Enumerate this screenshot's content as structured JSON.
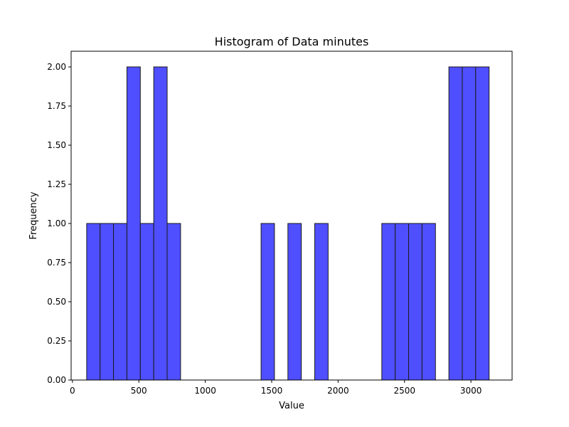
{
  "colors": {
    "bar_fill": "#4f4fff",
    "bar_stroke": "#1a1a1a",
    "axis": "#000000",
    "background": "#ffffff"
  },
  "chart_data": {
    "type": "bar",
    "title": "Histogram of Data minutes",
    "xlabel": "Value",
    "ylabel": "Frequency",
    "xlim": [
      -10,
      3310
    ],
    "ylim": [
      0,
      2.1
    ],
    "grid": false,
    "bin_width": 101,
    "x_ticks": [
      0,
      500,
      1000,
      1500,
      2000,
      2500,
      3000
    ],
    "x_tick_labels": [
      "0",
      "500",
      "1000",
      "1500",
      "2000",
      "2500",
      "3000"
    ],
    "y_ticks": [
      0,
      0.25,
      0.5,
      0.75,
      1.0,
      1.25,
      1.5,
      1.75,
      2.0
    ],
    "y_tick_labels": [
      "0.00",
      "0.25",
      "0.50",
      "0.75",
      "1.00",
      "1.25",
      "1.50",
      "1.75",
      "2.00"
    ],
    "bins": [
      {
        "x0": 107,
        "x1": 208,
        "count": 1
      },
      {
        "x0": 208,
        "x1": 309,
        "count": 1
      },
      {
        "x0": 309,
        "x1": 410,
        "count": 1
      },
      {
        "x0": 410,
        "x1": 511,
        "count": 2
      },
      {
        "x0": 511,
        "x1": 612,
        "count": 1
      },
      {
        "x0": 612,
        "x1": 713,
        "count": 2
      },
      {
        "x0": 713,
        "x1": 814,
        "count": 1
      },
      {
        "x0": 1420,
        "x1": 1521,
        "count": 1
      },
      {
        "x0": 1622,
        "x1": 1723,
        "count": 1
      },
      {
        "x0": 1824,
        "x1": 1925,
        "count": 1
      },
      {
        "x0": 2329,
        "x1": 2430,
        "count": 1
      },
      {
        "x0": 2430,
        "x1": 2531,
        "count": 1
      },
      {
        "x0": 2531,
        "x1": 2632,
        "count": 1
      },
      {
        "x0": 2632,
        "x1": 2733,
        "count": 1
      },
      {
        "x0": 2834,
        "x1": 2935,
        "count": 2
      },
      {
        "x0": 2935,
        "x1": 3036,
        "count": 2
      },
      {
        "x0": 3036,
        "x1": 3137,
        "count": 2
      }
    ]
  }
}
